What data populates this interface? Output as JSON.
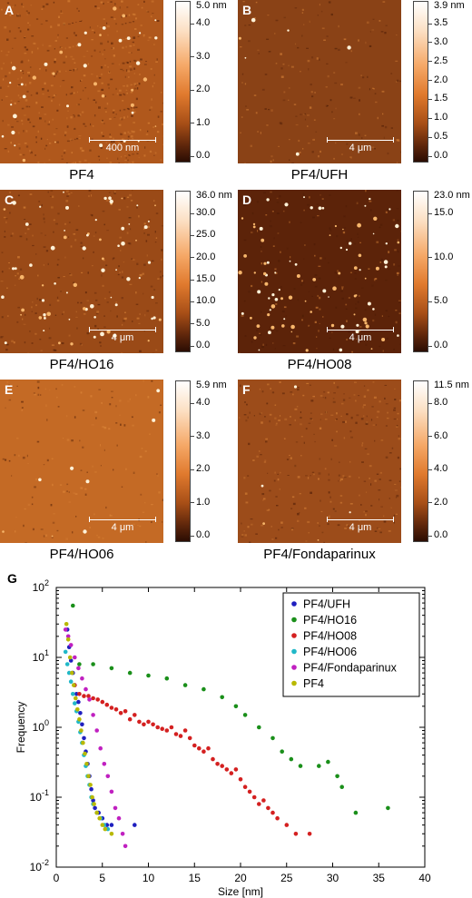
{
  "panels": [
    {
      "letter": "A",
      "caption": "PF4",
      "scale_label": "400 nm",
      "colorbar": {
        "max_label": "5.0 nm",
        "ticks": [
          "4.0",
          "3.0",
          "2.0",
          "1.0",
          "0.0"
        ]
      },
      "texture": {
        "base": "#b0581c",
        "density": 1.0,
        "bright_spots": 40
      }
    },
    {
      "letter": "B",
      "caption": "PF4/UFH",
      "scale_label": "4 μm",
      "colorbar": {
        "max_label": "3.9 nm",
        "ticks": [
          "3.5",
          "3.0",
          "2.5",
          "2.0",
          "1.5",
          "1.0",
          "0.5",
          "0.0"
        ]
      },
      "texture": {
        "base": "#8a4216",
        "density": 0.35,
        "bright_spots": 6
      }
    },
    {
      "letter": "C",
      "caption": "PF4/HO16",
      "scale_label": "4 μm",
      "colorbar": {
        "max_label": "36.0 nm",
        "ticks": [
          "30.0",
          "25.0",
          "20.0",
          "15.0",
          "10.0",
          "5.0",
          "0.0"
        ]
      },
      "texture": {
        "base": "#9a4a17",
        "density": 0.5,
        "bright_spots": 70
      }
    },
    {
      "letter": "D",
      "caption": "PF4/HO08",
      "scale_label": "4 μm",
      "colorbar": {
        "max_label": "23.0 nm",
        "ticks": [
          "15.0",
          "10.0",
          "5.0",
          "0.0"
        ]
      },
      "texture": {
        "base": "#5c2309",
        "density": 0.4,
        "bright_spots": 90
      }
    },
    {
      "letter": "E",
      "caption": "PF4/HO06",
      "scale_label": "4 μm",
      "colorbar": {
        "max_label": "5.9 nm",
        "ticks": [
          "4.0",
          "3.0",
          "2.0",
          "1.0",
          "0.0"
        ]
      },
      "texture": {
        "base": "#c46a25",
        "density": 0.3,
        "bright_spots": 8
      }
    },
    {
      "letter": "F",
      "caption": "PF4/Fondaparinux",
      "scale_label": "4 μm",
      "colorbar": {
        "max_label": "11.5 nm",
        "ticks": [
          "8.0",
          "6.0",
          "4.0",
          "2.0",
          "0.0"
        ]
      },
      "texture": {
        "base": "#9c4c1a",
        "density": 0.6,
        "bright_spots": 5
      }
    }
  ],
  "chart_data": {
    "panel_letter": "G",
    "type": "scatter",
    "xlabel": "Size [nm]",
    "ylabel": "Frequency",
    "xlim": [
      0,
      40
    ],
    "ylim": [
      0.01,
      100
    ],
    "yscale": "log",
    "xticks": [
      "0",
      "5",
      "10",
      "15",
      "20",
      "25",
      "30",
      "35",
      "40"
    ],
    "yticks": [
      "10^-2",
      "10^-1",
      "10^0",
      "10^1",
      "10^2"
    ],
    "legend_position": "top-right",
    "series": [
      {
        "name": "PF4/UFH",
        "color": "#1f1fbf",
        "points": [
          [
            1.2,
            25
          ],
          [
            1.4,
            14
          ],
          [
            1.6,
            9
          ],
          [
            1.8,
            6
          ],
          [
            2.0,
            4
          ],
          [
            2.2,
            3.0
          ],
          [
            2.4,
            2.3
          ],
          [
            2.6,
            1.6
          ],
          [
            2.8,
            1.1
          ],
          [
            3.0,
            0.7
          ],
          [
            3.2,
            0.45
          ],
          [
            3.4,
            0.3
          ],
          [
            3.6,
            0.2
          ],
          [
            3.8,
            0.13
          ],
          [
            4.0,
            0.09
          ],
          [
            4.2,
            0.07
          ],
          [
            4.6,
            0.06
          ],
          [
            5.0,
            0.05
          ],
          [
            5.5,
            0.04
          ],
          [
            6.0,
            0.04
          ],
          [
            8.5,
            0.04
          ]
        ]
      },
      {
        "name": "PF4/HO16",
        "color": "#1a8f1a",
        "points": [
          [
            1.8,
            55
          ],
          [
            2.5,
            8
          ],
          [
            4,
            8
          ],
          [
            6,
            7
          ],
          [
            8,
            6
          ],
          [
            10,
            5.5
          ],
          [
            12,
            5
          ],
          [
            14,
            4
          ],
          [
            16,
            3.5
          ],
          [
            18,
            2.7
          ],
          [
            19.5,
            2
          ],
          [
            20.5,
            1.5
          ],
          [
            22,
            1.0
          ],
          [
            23.5,
            0.7
          ],
          [
            24.5,
            0.45
          ],
          [
            25.5,
            0.35
          ],
          [
            26.5,
            0.28
          ],
          [
            28.5,
            0.28
          ],
          [
            29.5,
            0.32
          ],
          [
            30.5,
            0.2
          ],
          [
            31,
            0.14
          ],
          [
            32.5,
            0.06
          ],
          [
            36,
            0.07
          ]
        ]
      },
      {
        "name": "PF4/HO08",
        "color": "#d42020",
        "points": [
          [
            2.0,
            4
          ],
          [
            2.5,
            3
          ],
          [
            3.0,
            2.8
          ],
          [
            3.5,
            2.8
          ],
          [
            4.0,
            2.6
          ],
          [
            4.5,
            2.5
          ],
          [
            5.0,
            2.3
          ],
          [
            5.5,
            2.1
          ],
          [
            6.0,
            1.9
          ],
          [
            6.5,
            1.8
          ],
          [
            7.0,
            1.6
          ],
          [
            7.5,
            1.7
          ],
          [
            8.0,
            1.3
          ],
          [
            8.5,
            1.5
          ],
          [
            9.0,
            1.2
          ],
          [
            9.5,
            1.1
          ],
          [
            10.0,
            1.2
          ],
          [
            10.5,
            1.1
          ],
          [
            11.0,
            1.0
          ],
          [
            11.5,
            0.95
          ],
          [
            12.0,
            0.9
          ],
          [
            12.5,
            1.0
          ],
          [
            13.0,
            0.8
          ],
          [
            13.5,
            0.75
          ],
          [
            14.0,
            0.9
          ],
          [
            14.5,
            0.7
          ],
          [
            15.0,
            0.55
          ],
          [
            15.5,
            0.5
          ],
          [
            16.0,
            0.45
          ],
          [
            16.5,
            0.5
          ],
          [
            17.0,
            0.35
          ],
          [
            17.5,
            0.3
          ],
          [
            18.0,
            0.28
          ],
          [
            18.5,
            0.25
          ],
          [
            19.0,
            0.22
          ],
          [
            19.5,
            0.25
          ],
          [
            20.0,
            0.18
          ],
          [
            20.5,
            0.14
          ],
          [
            21.0,
            0.12
          ],
          [
            21.5,
            0.1
          ],
          [
            22.0,
            0.08
          ],
          [
            22.5,
            0.09
          ],
          [
            23.0,
            0.07
          ],
          [
            23.5,
            0.06
          ],
          [
            24.0,
            0.05
          ],
          [
            25.0,
            0.04
          ],
          [
            26.0,
            0.03
          ],
          [
            27.5,
            0.03
          ]
        ]
      },
      {
        "name": "PF4/HO06",
        "color": "#20b8c8",
        "points": [
          [
            1.0,
            12
          ],
          [
            1.2,
            8
          ],
          [
            1.4,
            6
          ],
          [
            1.6,
            4.5
          ],
          [
            1.8,
            3
          ],
          [
            2.0,
            2.2
          ],
          [
            2.2,
            1.7
          ],
          [
            2.4,
            1.2
          ],
          [
            2.6,
            0.85
          ],
          [
            2.8,
            0.6
          ],
          [
            3.0,
            0.4
          ],
          [
            3.2,
            0.28
          ],
          [
            3.4,
            0.2
          ],
          [
            3.6,
            0.15
          ],
          [
            3.8,
            0.1
          ],
          [
            4.0,
            0.08
          ],
          [
            4.4,
            0.06
          ],
          [
            4.8,
            0.05
          ],
          [
            5.2,
            0.04
          ],
          [
            5.6,
            0.035
          ]
        ]
      },
      {
        "name": "PF4/Fondaparinux",
        "color": "#c020c0",
        "points": [
          [
            1.0,
            25
          ],
          [
            1.3,
            20
          ],
          [
            1.6,
            15
          ],
          [
            2.0,
            10
          ],
          [
            2.4,
            7
          ],
          [
            2.8,
            5
          ],
          [
            3.2,
            3.5
          ],
          [
            3.6,
            2.5
          ],
          [
            4.0,
            1.5
          ],
          [
            4.4,
            0.9
          ],
          [
            4.8,
            0.5
          ],
          [
            5.2,
            0.3
          ],
          [
            5.6,
            0.2
          ],
          [
            6.0,
            0.12
          ],
          [
            6.4,
            0.07
          ],
          [
            6.8,
            0.05
          ],
          [
            7.2,
            0.03
          ],
          [
            7.5,
            0.02
          ]
        ]
      },
      {
        "name": "PF4",
        "color": "#b8b800",
        "points": [
          [
            1.1,
            30
          ],
          [
            1.3,
            18
          ],
          [
            1.5,
            10
          ],
          [
            1.7,
            6
          ],
          [
            1.9,
            4
          ],
          [
            2.1,
            2.6
          ],
          [
            2.3,
            1.8
          ],
          [
            2.5,
            1.3
          ],
          [
            2.7,
            0.9
          ],
          [
            2.9,
            0.6
          ],
          [
            3.1,
            0.42
          ],
          [
            3.3,
            0.3
          ],
          [
            3.5,
            0.2
          ],
          [
            3.7,
            0.15
          ],
          [
            3.9,
            0.1
          ],
          [
            4.1,
            0.08
          ],
          [
            4.4,
            0.06
          ],
          [
            4.7,
            0.05
          ],
          [
            5.0,
            0.04
          ],
          [
            5.3,
            0.035
          ],
          [
            6.0,
            0.03
          ]
        ]
      }
    ]
  }
}
